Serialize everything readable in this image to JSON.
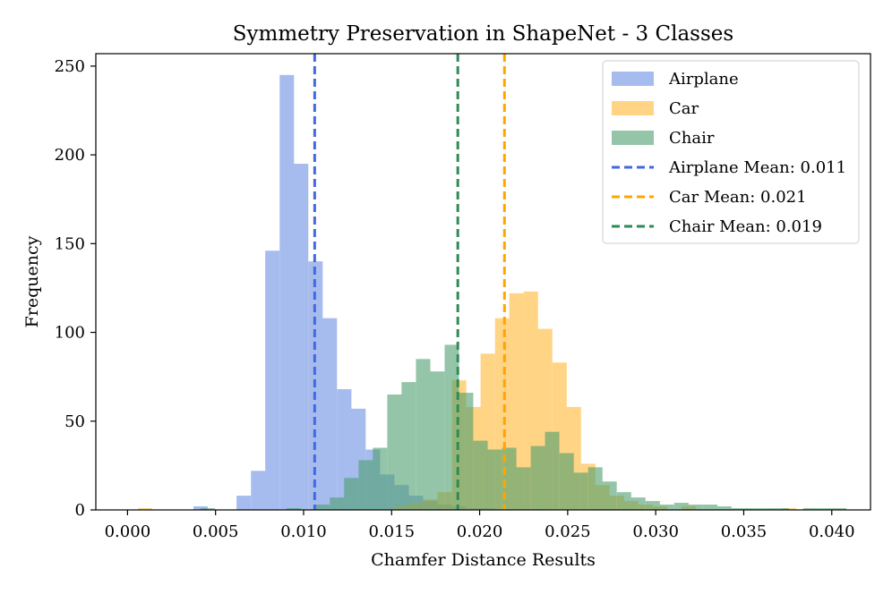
{
  "chart_data": {
    "type": "histogram",
    "title": "Symmetry Preservation in ShapeNet - 3 Classes",
    "xlabel": "Chamfer Distance Results",
    "ylabel": "Frequency",
    "xlim": [
      -0.0018,
      0.0422
    ],
    "ylim": [
      0,
      257
    ],
    "xticks": [
      0.0,
      0.005,
      0.01,
      0.015,
      0.02,
      0.025,
      0.03,
      0.035,
      0.04
    ],
    "xtick_labels": [
      "0.000",
      "0.005",
      "0.010",
      "0.015",
      "0.020",
      "0.025",
      "0.030",
      "0.035",
      "0.040"
    ],
    "yticks": [
      0,
      50,
      100,
      150,
      200,
      250
    ],
    "ytick_labels": [
      "0",
      "50",
      "100",
      "150",
      "200",
      "250"
    ],
    "legend_position": "top-right",
    "series": [
      {
        "name": "Airplane",
        "color": "#6a8ee3",
        "bar_width": 0.000815,
        "bins": [
          {
            "x": 0.00415,
            "count": 2
          },
          {
            "x": 0.0066,
            "count": 8
          },
          {
            "x": 0.00742,
            "count": 22
          },
          {
            "x": 0.00823,
            "count": 146
          },
          {
            "x": 0.00905,
            "count": 245
          },
          {
            "x": 0.00986,
            "count": 195
          },
          {
            "x": 0.01068,
            "count": 140
          },
          {
            "x": 0.01149,
            "count": 108
          },
          {
            "x": 0.01231,
            "count": 68
          },
          {
            "x": 0.01312,
            "count": 57
          },
          {
            "x": 0.01394,
            "count": 34
          },
          {
            "x": 0.01475,
            "count": 20
          },
          {
            "x": 0.01557,
            "count": 14
          },
          {
            "x": 0.01638,
            "count": 8
          },
          {
            "x": 0.0172,
            "count": 5
          },
          {
            "x": 0.01801,
            "count": 3
          },
          {
            "x": 0.01883,
            "count": 2
          },
          {
            "x": 0.01965,
            "count": 1
          },
          {
            "x": 0.02046,
            "count": 1
          }
        ]
      },
      {
        "name": "Car",
        "color": "#ffb732",
        "bar_width": 0.000815,
        "bins": [
          {
            "x": 0.001,
            "count": 1
          },
          {
            "x": 0.01557,
            "count": 2
          },
          {
            "x": 0.01638,
            "count": 4
          },
          {
            "x": 0.0172,
            "count": 6
          },
          {
            "x": 0.01801,
            "count": 10
          },
          {
            "x": 0.01883,
            "count": 73
          },
          {
            "x": 0.01965,
            "count": 58
          },
          {
            "x": 0.02046,
            "count": 88
          },
          {
            "x": 0.02128,
            "count": 108
          },
          {
            "x": 0.02209,
            "count": 122
          },
          {
            "x": 0.02291,
            "count": 123
          },
          {
            "x": 0.02372,
            "count": 102
          },
          {
            "x": 0.02454,
            "count": 83
          },
          {
            "x": 0.02535,
            "count": 58
          },
          {
            "x": 0.02617,
            "count": 26
          },
          {
            "x": 0.02698,
            "count": 14
          },
          {
            "x": 0.0278,
            "count": 8
          },
          {
            "x": 0.02861,
            "count": 5
          },
          {
            "x": 0.02943,
            "count": 3
          },
          {
            "x": 0.03025,
            "count": 2
          },
          {
            "x": 0.03188,
            "count": 2
          },
          {
            "x": 0.03758,
            "count": 1
          }
        ]
      },
      {
        "name": "Chair",
        "color": "#4c9e6e",
        "bar_width": 0.000815,
        "bins": [
          {
            "x": 0.00455,
            "count": 1
          },
          {
            "x": 0.00944,
            "count": 1
          },
          {
            "x": 0.01108,
            "count": 3
          },
          {
            "x": 0.0119,
            "count": 7
          },
          {
            "x": 0.01271,
            "count": 18
          },
          {
            "x": 0.01353,
            "count": 28
          },
          {
            "x": 0.01434,
            "count": 35
          },
          {
            "x": 0.01516,
            "count": 65
          },
          {
            "x": 0.01597,
            "count": 72
          },
          {
            "x": 0.01679,
            "count": 85
          },
          {
            "x": 0.0176,
            "count": 78
          },
          {
            "x": 0.01842,
            "count": 93
          },
          {
            "x": 0.01923,
            "count": 66
          },
          {
            "x": 0.02005,
            "count": 39
          },
          {
            "x": 0.02086,
            "count": 34
          },
          {
            "x": 0.02168,
            "count": 35
          },
          {
            "x": 0.02249,
            "count": 24
          },
          {
            "x": 0.02331,
            "count": 36
          },
          {
            "x": 0.02412,
            "count": 44
          },
          {
            "x": 0.02494,
            "count": 32
          },
          {
            "x": 0.02575,
            "count": 21
          },
          {
            "x": 0.02657,
            "count": 24
          },
          {
            "x": 0.02738,
            "count": 16
          },
          {
            "x": 0.0282,
            "count": 10
          },
          {
            "x": 0.02901,
            "count": 7
          },
          {
            "x": 0.02983,
            "count": 5
          },
          {
            "x": 0.03064,
            "count": 3
          },
          {
            "x": 0.03146,
            "count": 4
          },
          {
            "x": 0.03227,
            "count": 3
          },
          {
            "x": 0.03309,
            "count": 3
          },
          {
            "x": 0.0339,
            "count": 2
          },
          {
            "x": 0.03472,
            "count": 1
          },
          {
            "x": 0.03553,
            "count": 1
          },
          {
            "x": 0.03635,
            "count": 1
          },
          {
            "x": 0.03716,
            "count": 1
          },
          {
            "x": 0.03878,
            "count": 1
          },
          {
            "x": 0.0396,
            "count": 1
          },
          {
            "x": 0.04042,
            "count": 1
          }
        ]
      }
    ],
    "mean_lines": [
      {
        "name": "Airplane Mean: 0.011",
        "x": 0.01063,
        "color": "#4169e1"
      },
      {
        "name": "Car Mean: 0.021",
        "x": 0.02141,
        "color": "#ffa500"
      },
      {
        "name": "Chair Mean: 0.019",
        "x": 0.01876,
        "color": "#2e8b57"
      }
    ]
  }
}
